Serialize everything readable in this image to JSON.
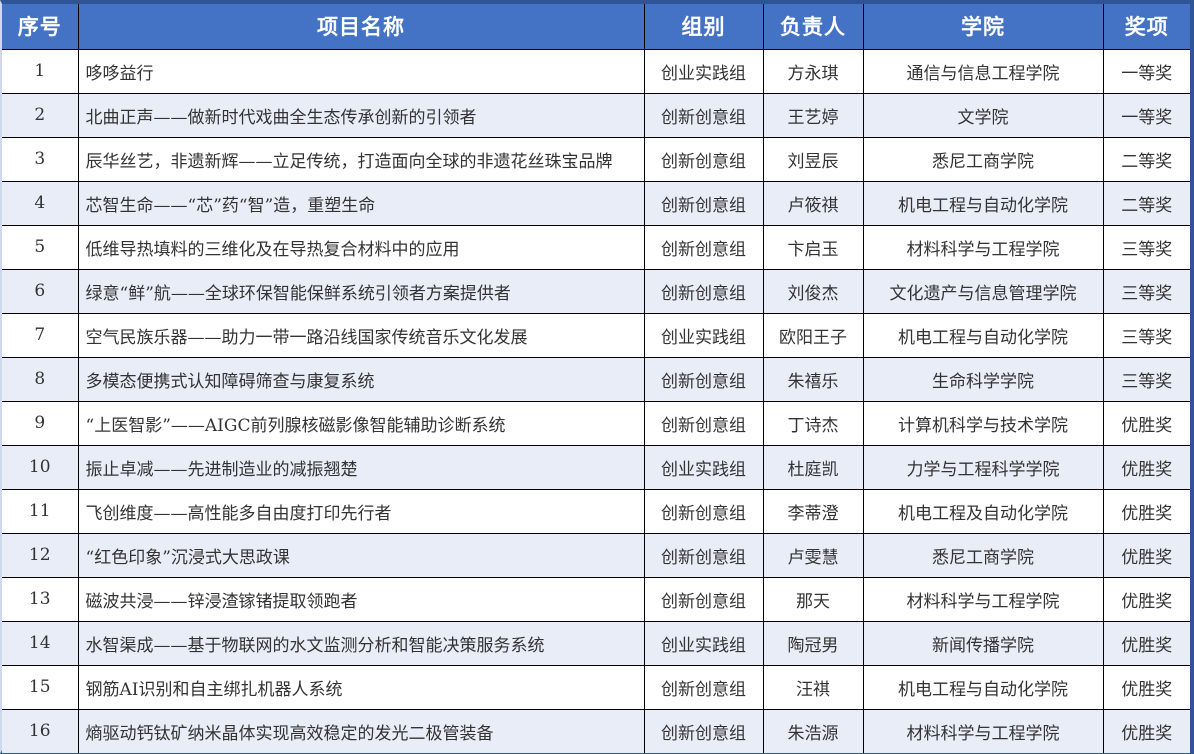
{
  "table": {
    "columns": [
      {
        "key": "index",
        "label": "序号"
      },
      {
        "key": "name",
        "label": "项目名称"
      },
      {
        "key": "group",
        "label": "组别"
      },
      {
        "key": "leader",
        "label": "负责人"
      },
      {
        "key": "college",
        "label": "学院"
      },
      {
        "key": "award",
        "label": "奖项"
      }
    ],
    "rows": [
      {
        "index": "1",
        "name": "哆哆益行",
        "group": "创业实践组",
        "leader": "方永琪",
        "college": "通信与信息工程学院",
        "award": "一等奖"
      },
      {
        "index": "2",
        "name": "北曲正声——做新时代戏曲全生态传承创新的引领者",
        "group": "创新创意组",
        "leader": "王艺婷",
        "college": "文学院",
        "award": "一等奖"
      },
      {
        "index": "3",
        "name": "辰华丝艺，非遗新辉——立足传统，打造面向全球的非遗花丝珠宝品牌",
        "group": "创新创意组",
        "leader": "刘昱辰",
        "college": "悉尼工商学院",
        "award": "二等奖"
      },
      {
        "index": "4",
        "name": "芯智生命——“芯”药“智”造，重塑生命",
        "group": "创新创意组",
        "leader": "卢筱祺",
        "college": "机电工程与自动化学院",
        "award": "二等奖"
      },
      {
        "index": "5",
        "name": "低维导热填料的三维化及在导热复合材料中的应用",
        "group": "创新创意组",
        "leader": "卞启玉",
        "college": "材料科学与工程学院",
        "award": "三等奖"
      },
      {
        "index": "6",
        "name": "绿意“鲜”航——全球环保智能保鲜系统引领者方案提供者",
        "group": "创新创意组",
        "leader": "刘俊杰",
        "college": "文化遗产与信息管理学院",
        "award": "三等奖"
      },
      {
        "index": "7",
        "name": "空气民族乐器——助力一带一路沿线国家传统音乐文化发展",
        "group": "创业实践组",
        "leader": "欧阳王子",
        "college": "机电工程与自动化学院",
        "award": "三等奖"
      },
      {
        "index": "8",
        "name": "多模态便携式认知障碍筛查与康复系统",
        "group": "创新创意组",
        "leader": "朱禧乐",
        "college": "生命科学学院",
        "award": "三等奖"
      },
      {
        "index": "9",
        "name": "“上医智影”——AIGC前列腺核磁影像智能辅助诊断系统",
        "group": "创新创意组",
        "leader": "丁诗杰",
        "college": "计算机科学与技术学院",
        "award": "优胜奖"
      },
      {
        "index": "10",
        "name": "振止卓减——先进制造业的减振翘楚",
        "group": "创业实践组",
        "leader": "杜庭凯",
        "college": "力学与工程科学学院",
        "award": "优胜奖"
      },
      {
        "index": "11",
        "name": "飞创维度——高性能多自由度打印先行者",
        "group": "创新创意组",
        "leader": "李蒂澄",
        "college": "机电工程及自动化学院",
        "award": "优胜奖"
      },
      {
        "index": "12",
        "name": "“红色印象”沉浸式大思政课",
        "group": "创新创意组",
        "leader": "卢雯慧",
        "college": "悉尼工商学院",
        "award": "优胜奖"
      },
      {
        "index": "13",
        "name": "磁波共浸——锌浸渣镓锗提取领跑者",
        "group": "创新创意组",
        "leader": "那天",
        "college": "材料科学与工程学院",
        "award": "优胜奖"
      },
      {
        "index": "14",
        "name": "水智渠成——基于物联网的水文监测分析和智能决策服务系统",
        "group": "创业实践组",
        "leader": "陶冠男",
        "college": "新闻传播学院",
        "award": "优胜奖"
      },
      {
        "index": "15",
        "name": "钢筋AI识别和自主绑扎机器人系统",
        "group": "创新创意组",
        "leader": "汪祺",
        "college": "机电工程与自动化学院",
        "award": "优胜奖"
      },
      {
        "index": "16",
        "name": "熵驱动钙钛矿纳米晶体实现高效稳定的发光二极管装备",
        "group": "创新创意组",
        "leader": "朱浩源",
        "college": "材料科学与工程学院",
        "award": "优胜奖"
      }
    ]
  },
  "colors": {
    "header_bg": "#4472C4",
    "header_text": "#FFFFFF",
    "row_alt_bg": "#E9EDF7",
    "outer_border": "#2F5597",
    "grid_border": "#000000",
    "body_text": "#333333"
  }
}
